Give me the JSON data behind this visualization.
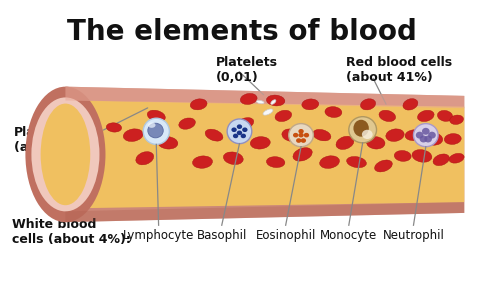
{
  "title": "The elements of blood",
  "title_fontsize": 20,
  "title_fontweight": "bold",
  "bg_color": "#ffffff",
  "tube_outer_color": "#cc8878",
  "tube_inner_color": "#f0c060",
  "tube_cap_color": "#c07060",
  "tube_pink_rim": "#f0c8bc",
  "tube_top_highlight": "#e8a898",
  "rbc_color": "#cc2020",
  "rbc_edge": "#aa1010",
  "plasma_label": "Plasma\n(about 55%)",
  "platelets_label": "Platelets\n(0,01)",
  "rbc_label": "Red blood cells\n(about 41%)",
  "wbc_bold": "White blood\ncells (about 4%):",
  "lymphocyte_label": "Lymphocyte",
  "basophil_label": "Basophil",
  "eosinophil_label": "Eosinophil",
  "monocyte_label": "Monocyte",
  "neutrophil_label": "Neutrophil",
  "label_fontsize": 9,
  "label_fontweight": "bold",
  "sublabel_fontsize": 8.5,
  "line_color": "#888888"
}
